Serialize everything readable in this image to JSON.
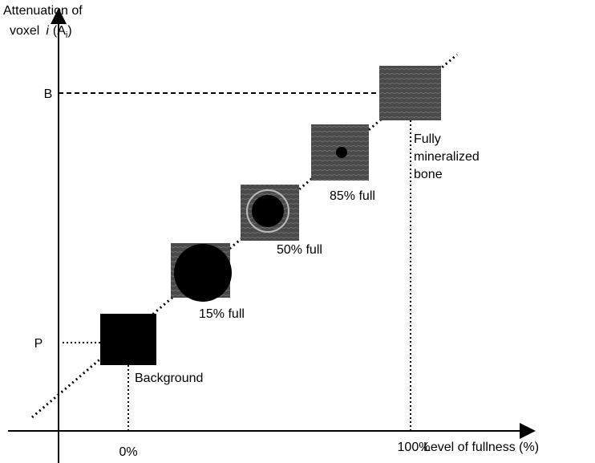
{
  "axes": {
    "y_label": {
      "line1": "Attenuation of",
      "word": "voxel",
      "italic": "i",
      "open": "(A",
      "sub": "i",
      "close": ")"
    },
    "x_label": "Level of fullness (%)",
    "y_ticks": [
      "B",
      "P"
    ],
    "x_ticks": [
      "0%",
      "100%"
    ]
  },
  "samples": [
    {
      "label": "Background"
    },
    {
      "label": "15% full"
    },
    {
      "label": "50% full"
    },
    {
      "label": "85% full"
    },
    {
      "label_lines": [
        "Fully",
        "mineralized",
        "bone"
      ]
    }
  ]
}
